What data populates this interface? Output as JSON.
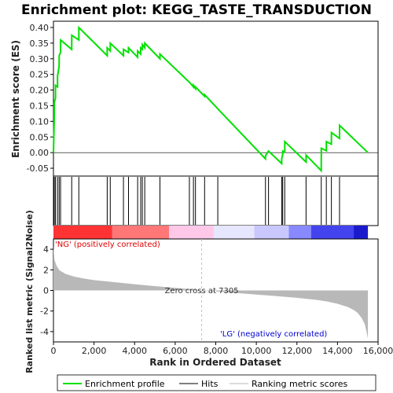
{
  "chart_data": {
    "type": "line",
    "title": "Enrichment plot: KEGG_TASTE_TRANSDUCTION",
    "xlabel": "Rank in Ordered Dataset",
    "ylabel_top": "Enrichment score (ES)",
    "ylabel_bottom": "Ranked list metric (Signal2Noise)",
    "xlim": [
      0,
      16000
    ],
    "x_ticks": [
      0,
      2000,
      4000,
      6000,
      8000,
      10000,
      12000,
      14000,
      16000
    ],
    "x_tick_labels": [
      "0",
      "2,000",
      "4,000",
      "6,000",
      "8,000",
      "10,000",
      "12,000",
      "14,000",
      "16,000"
    ],
    "es_ylim": [
      -0.075,
      0.42
    ],
    "es_ticks": [
      -0.05,
      0.0,
      0.05,
      0.1,
      0.15,
      0.2,
      0.25,
      0.3,
      0.35,
      0.4
    ],
    "es_tick_labels": [
      "-0.05",
      "0.00",
      "0.05",
      "0.10",
      "0.15",
      "0.20",
      "0.25",
      "0.30",
      "0.35",
      "0.40"
    ],
    "metric_ylim": [
      -5,
      5
    ],
    "metric_ticks": [
      -4,
      -2,
      0,
      2,
      4
    ],
    "metric_tick_labels": [
      "-4",
      "-2",
      "0",
      "2",
      "4"
    ],
    "total_ranks": 15500,
    "zero_cross_rank": 7305,
    "zero_cross_label": "Zero cross at 7305",
    "pos_label": "'NG' (positively correlated)",
    "neg_label": "'LG' (negatively correlated)",
    "hits": [
      40,
      100,
      200,
      280,
      350,
      900,
      1250,
      2650,
      2800,
      3450,
      3700,
      4150,
      4300,
      4380,
      4500,
      5250,
      6700,
      6900,
      7000,
      7450,
      8100,
      10450,
      10600,
      11250,
      11300,
      11400,
      12450,
      13200,
      13450,
      13700,
      14100
    ],
    "es_curve": {
      "x": [
        0,
        40,
        41,
        100,
        101,
        200,
        201,
        280,
        281,
        350,
        351,
        900,
        901,
        1250,
        1251,
        2650,
        2651,
        2800,
        2801,
        3450,
        3451,
        3700,
        3701,
        4150,
        4151,
        4300,
        4301,
        4380,
        4381,
        4500,
        4501,
        5250,
        5251,
        6700,
        6701,
        6900,
        6901,
        7000,
        7001,
        7450,
        7451,
        8100,
        8101,
        10450,
        10451,
        10600,
        10601,
        11250,
        11251,
        11300,
        11301,
        11400,
        11401,
        12450,
        12451,
        13200,
        13201,
        13450,
        13451,
        13700,
        13701,
        14100,
        14101,
        15500
      ],
      "y": [
        0.0,
        0.11,
        0.16,
        0.175,
        0.215,
        0.21,
        0.245,
        0.275,
        0.31,
        0.32,
        0.36,
        0.33,
        0.375,
        0.36,
        0.4,
        0.31,
        0.335,
        0.325,
        0.35,
        0.31,
        0.33,
        0.32,
        0.335,
        0.305,
        0.325,
        0.315,
        0.335,
        0.33,
        0.345,
        0.335,
        0.35,
        0.3,
        0.315,
        0.225,
        0.225,
        0.21,
        0.215,
        0.205,
        0.21,
        0.18,
        0.185,
        0.14,
        0.14,
        -0.02,
        -0.01,
        0.005,
        0.005,
        -0.035,
        -0.02,
        -0.005,
        0.005,
        0.002,
        0.035,
        -0.03,
        -0.008,
        -0.058,
        0.014,
        0.006,
        0.035,
        0.027,
        0.064,
        0.045,
        0.087,
        0.0
      ]
    },
    "metric_curve": {
      "x": [
        0,
        50,
        150,
        300,
        600,
        1000,
        1500,
        2000,
        3000,
        4000,
        5000,
        6000,
        7000,
        7305,
        8000,
        9000,
        10000,
        11000,
        12000,
        13000,
        13500,
        14000,
        14500,
        14800,
        15000,
        15200,
        15350,
        15450,
        15500
      ],
      "y": [
        4.3,
        3.0,
        2.4,
        1.95,
        1.6,
        1.35,
        1.15,
        1.0,
        0.8,
        0.6,
        0.42,
        0.25,
        0.08,
        0.0,
        -0.1,
        -0.25,
        -0.4,
        -0.55,
        -0.72,
        -0.92,
        -1.08,
        -1.3,
        -1.6,
        -1.9,
        -2.2,
        -2.7,
        -3.3,
        -4.2,
        -4.7
      ]
    },
    "legend": [
      "Enrichment profile",
      "Hits",
      "Ranking metric scores"
    ],
    "colors": {
      "es_line": "#00e000",
      "hits": "#000000",
      "metric_fill": "#b8b8b8",
      "pos_text": "#e00000",
      "neg_text": "#0000d0",
      "zero_line": "#c0c0c0"
    },
    "color_bar": [
      {
        "from": 0,
        "to": 2900,
        "color": "#ff3333"
      },
      {
        "from": 2900,
        "to": 5700,
        "color": "#ff7777"
      },
      {
        "from": 5700,
        "to": 7900,
        "color": "#ffc8e8"
      },
      {
        "from": 7900,
        "to": 9900,
        "color": "#e6e6ff"
      },
      {
        "from": 9900,
        "to": 11600,
        "color": "#c8c8ff"
      },
      {
        "from": 11600,
        "to": 12700,
        "color": "#8888ff"
      },
      {
        "from": 12700,
        "to": 14800,
        "color": "#4444ee"
      },
      {
        "from": 14800,
        "to": 15500,
        "color": "#1a1acc"
      }
    ]
  }
}
